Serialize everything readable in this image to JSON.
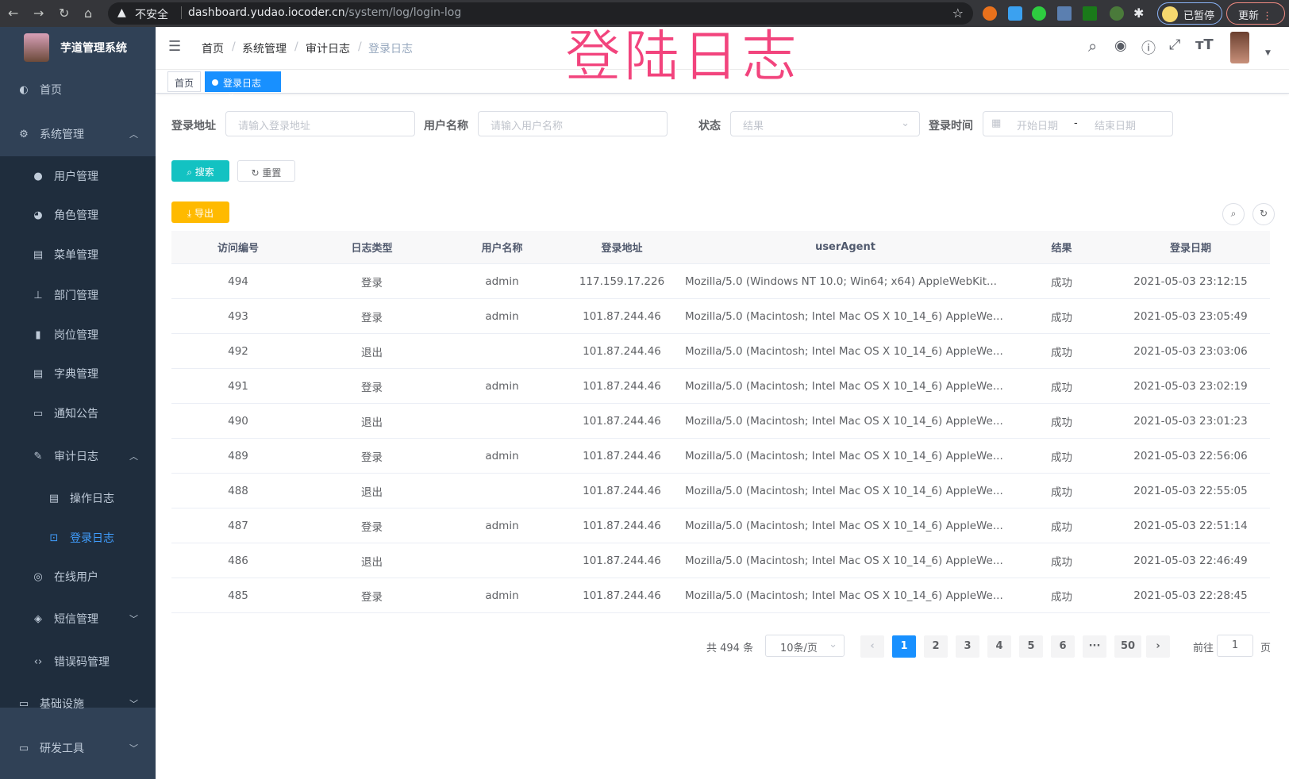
{
  "browser": {
    "insecure": "不安全",
    "url_host": "dashboard.yudao.iocoder.cn",
    "url_path": "/system/log/login-log",
    "paused": "已暂停",
    "update": "更新"
  },
  "overlay_title": "登陆日志",
  "sidebar": {
    "brand": "芋道管理系统",
    "items": [
      {
        "label": "首页",
        "icon": "dashboard-icon"
      },
      {
        "label": "系统管理",
        "icon": "gear-icon"
      },
      {
        "label": "用户管理",
        "icon": "user-icon"
      },
      {
        "label": "角色管理",
        "icon": "peoples-icon"
      },
      {
        "label": "菜单管理",
        "icon": "tree-table-icon"
      },
      {
        "label": "部门管理",
        "icon": "tree-icon"
      },
      {
        "label": "岗位管理",
        "icon": "post-icon"
      },
      {
        "label": "字典管理",
        "icon": "dict-icon"
      },
      {
        "label": "通知公告",
        "icon": "message-icon"
      },
      {
        "label": "审计日志",
        "icon": "log-icon"
      },
      {
        "label": "操作日志",
        "icon": "form-icon"
      },
      {
        "label": "登录日志",
        "icon": "logininfor-icon"
      },
      {
        "label": "在线用户",
        "icon": "online-icon"
      },
      {
        "label": "短信管理",
        "icon": "validCode-icon"
      },
      {
        "label": "错误码管理",
        "icon": "code-icon"
      },
      {
        "label": "基础设施",
        "icon": "monitor-icon"
      },
      {
        "label": "研发工具",
        "icon": "tool-icon"
      }
    ]
  },
  "breadcrumb": [
    "首页",
    "系统管理",
    "审计日志",
    "登录日志"
  ],
  "tags": {
    "home": "首页",
    "active": "登录日志"
  },
  "filters": {
    "ip_label": "登录地址",
    "ip_placeholder": "请输入登录地址",
    "user_label": "用户名称",
    "user_placeholder": "请输入用户名称",
    "status_label": "状态",
    "status_placeholder": "结果",
    "time_label": "登录时间",
    "start_placeholder": "开始日期",
    "range_sep": "-",
    "end_placeholder": "结束日期"
  },
  "buttons": {
    "search": "搜索",
    "reset": "重置",
    "export": "导出"
  },
  "table": {
    "columns": [
      "访问编号",
      "日志类型",
      "用户名称",
      "登录地址",
      "userAgent",
      "结果",
      "登录日期"
    ],
    "rows": [
      [
        "494",
        "登录",
        "admin",
        "117.159.17.226",
        "Mozilla/5.0 (Windows NT 10.0; Win64; x64) AppleWebKit...",
        "成功",
        "2021-05-03 23:12:15"
      ],
      [
        "493",
        "登录",
        "admin",
        "101.87.244.46",
        "Mozilla/5.0 (Macintosh; Intel Mac OS X 10_14_6) AppleWe...",
        "成功",
        "2021-05-03 23:05:49"
      ],
      [
        "492",
        "退出",
        "",
        "101.87.244.46",
        "Mozilla/5.0 (Macintosh; Intel Mac OS X 10_14_6) AppleWe...",
        "成功",
        "2021-05-03 23:03:06"
      ],
      [
        "491",
        "登录",
        "admin",
        "101.87.244.46",
        "Mozilla/5.0 (Macintosh; Intel Mac OS X 10_14_6) AppleWe...",
        "成功",
        "2021-05-03 23:02:19"
      ],
      [
        "490",
        "退出",
        "",
        "101.87.244.46",
        "Mozilla/5.0 (Macintosh; Intel Mac OS X 10_14_6) AppleWe...",
        "成功",
        "2021-05-03 23:01:23"
      ],
      [
        "489",
        "登录",
        "admin",
        "101.87.244.46",
        "Mozilla/5.0 (Macintosh; Intel Mac OS X 10_14_6) AppleWe...",
        "成功",
        "2021-05-03 22:56:06"
      ],
      [
        "488",
        "退出",
        "",
        "101.87.244.46",
        "Mozilla/5.0 (Macintosh; Intel Mac OS X 10_14_6) AppleWe...",
        "成功",
        "2021-05-03 22:55:05"
      ],
      [
        "487",
        "登录",
        "admin",
        "101.87.244.46",
        "Mozilla/5.0 (Macintosh; Intel Mac OS X 10_14_6) AppleWe...",
        "成功",
        "2021-05-03 22:51:14"
      ],
      [
        "486",
        "退出",
        "",
        "101.87.244.46",
        "Mozilla/5.0 (Macintosh; Intel Mac OS X 10_14_6) AppleWe...",
        "成功",
        "2021-05-03 22:46:49"
      ],
      [
        "485",
        "登录",
        "admin",
        "101.87.244.46",
        "Mozilla/5.0 (Macintosh; Intel Mac OS X 10_14_6) AppleWe...",
        "成功",
        "2021-05-03 22:28:45"
      ]
    ]
  },
  "pagination": {
    "total": "共 494 条",
    "page_size": "10条/页",
    "pages": [
      "1",
      "2",
      "3",
      "4",
      "5",
      "6",
      "···",
      "50"
    ],
    "current": "1",
    "goto_label": "前往",
    "goto_value": "1",
    "goto_suffix": "页"
  },
  "colors": {
    "sidebar": "#304156",
    "submenu": "#1f2d3d",
    "primary": "#1890ff",
    "search": "#13c2c2",
    "export": "#ffba00",
    "overlay": "#f2447d"
  }
}
